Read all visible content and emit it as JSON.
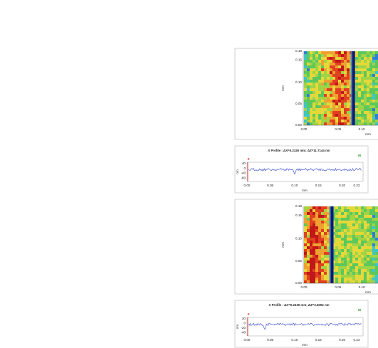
{
  "panels": [
    {
      "surface": {
        "y_ticks": [
          "0.18",
          "0.15",
          "0.10",
          "0.05",
          "0.00"
        ],
        "y_label": "mm",
        "x_ticks": [
          "0.00",
          "0.05",
          "0.10"
        ],
        "x_label": "mm"
      },
      "profile": {
        "title": "X Profile : ΔX=0.2330 mm; ΔZ=11.7144 nm",
        "marker": "M",
        "cursor": "X",
        "y_ticks": [
          "40",
          "0",
          "-40",
          "-80"
        ],
        "y_label": "nm",
        "x_ticks": [
          "0.00",
          "0.05",
          "0.10",
          "0.15",
          "0.20",
          "0.23"
        ],
        "x_label": "mm"
      }
    },
    {
      "surface": {
        "y_ticks": [
          "0.18",
          "0.15",
          "0.10",
          "0.05",
          "0.00"
        ],
        "y_label": "mm",
        "x_ticks": [
          "0.00",
          "0.05",
          "0.10"
        ],
        "x_label": "mm"
      },
      "profile": {
        "title": "X Profile : ΔX=0.2330 mm; ΔZ=2.6002 nm",
        "marker": "M",
        "cursor": "X",
        "y_ticks": [
          "20",
          "0",
          "-20",
          "-40"
        ],
        "y_label": "nm",
        "x_ticks": [
          "0.00",
          "0.05",
          "0.10",
          "0.15",
          "0.20",
          "0.23"
        ],
        "x_label": "mm"
      }
    }
  ]
}
